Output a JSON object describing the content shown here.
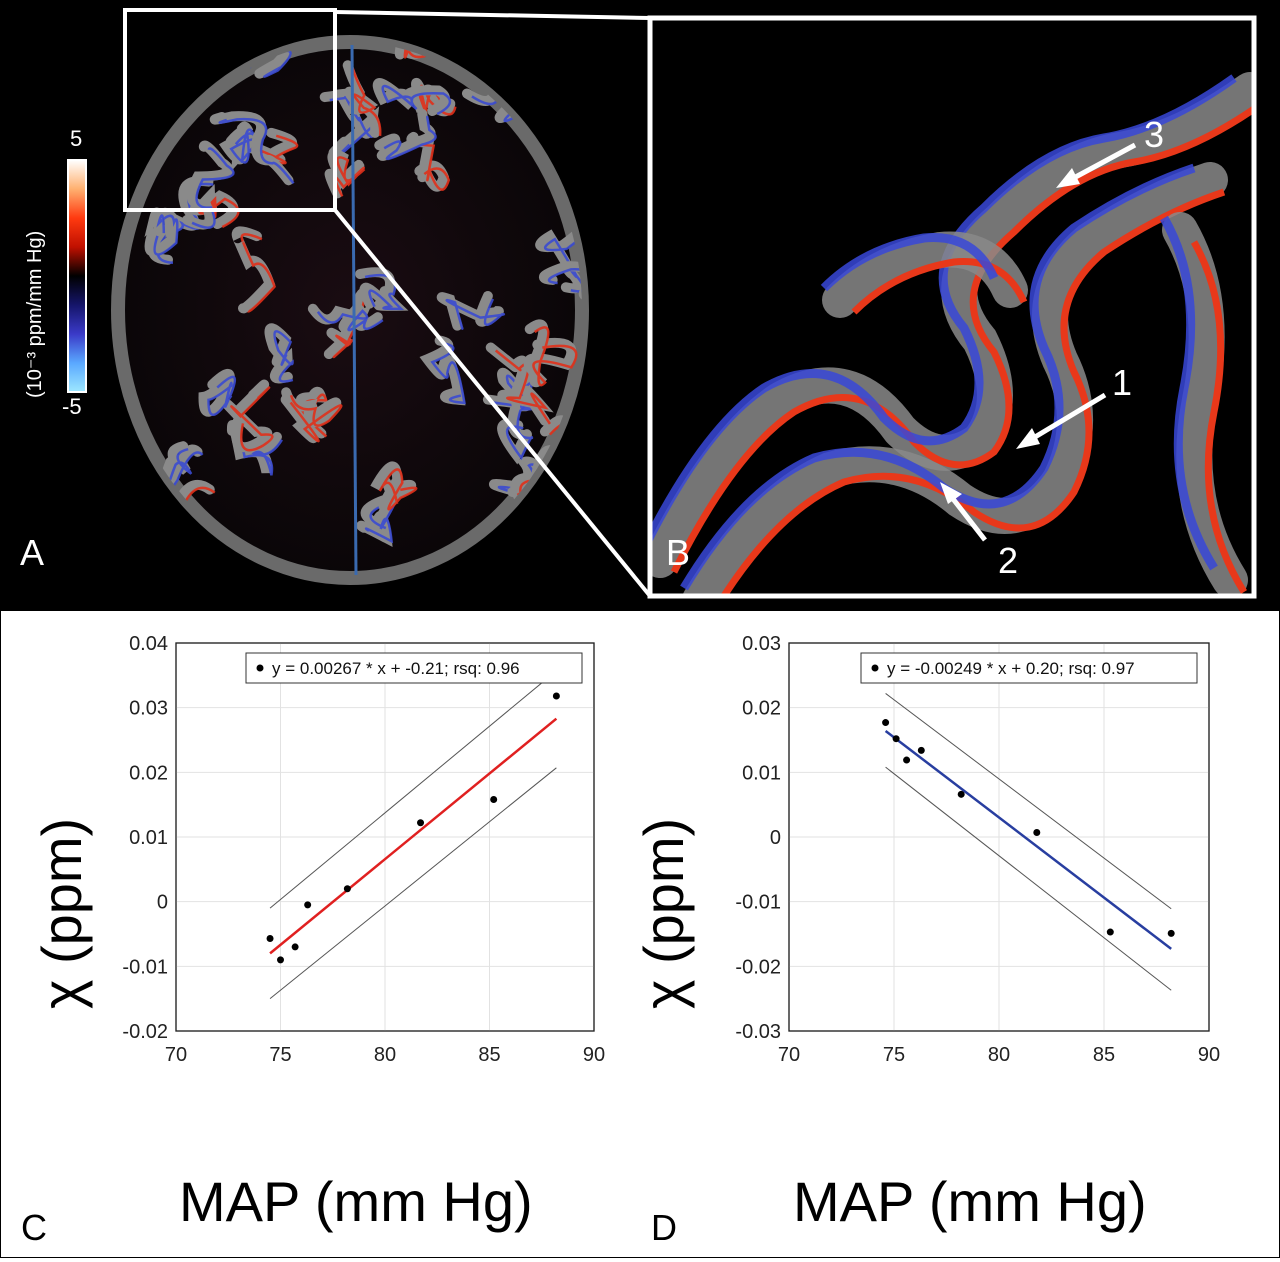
{
  "panels": {
    "a_label": "A",
    "b_label": "B",
    "c_label": "C",
    "d_label": "D"
  },
  "colorbar": {
    "max": "5",
    "min": "-5",
    "unit": "(10⁻³ ppm/mm Hg)",
    "colors": [
      "#ffffff",
      "#ffb070",
      "#ff3a10",
      "#c01000",
      "#000000",
      "#15156a",
      "#3a3ac8",
      "#5aa8ff",
      "#9ee8ff"
    ]
  },
  "arrows": [
    {
      "label": "1"
    },
    {
      "label": "2"
    },
    {
      "label": "3"
    }
  ],
  "colors": {
    "positive_fit": "#e02020",
    "negative_fit": "#283ea0",
    "gray_matter": "#8a8a8a",
    "zoom_box": "#ffffff"
  },
  "chart_data": [
    {
      "type": "scatter",
      "panel": "C",
      "xlabel": "MAP (mm Hg)",
      "ylabel": "χ (ppm)",
      "xlim": [
        70,
        90
      ],
      "ylim": [
        -0.02,
        0.04
      ],
      "xticks": [
        "70",
        "75",
        "80",
        "85",
        "90"
      ],
      "yticks": [
        "0.04",
        "0.03",
        "0.02",
        "0.01",
        "0",
        "-0.01",
        "-0.02"
      ],
      "legend": "y = 0.00267 * x + -0.21; rsq: 0.96",
      "legend_position": "top-right",
      "grid": true,
      "points": [
        {
          "x": 74.5,
          "y": -0.0057
        },
        {
          "x": 75.0,
          "y": -0.009
        },
        {
          "x": 75.7,
          "y": -0.007
        },
        {
          "x": 76.3,
          "y": -0.0005
        },
        {
          "x": 78.2,
          "y": 0.002
        },
        {
          "x": 81.7,
          "y": 0.0122
        },
        {
          "x": 85.2,
          "y": 0.0158
        },
        {
          "x": 88.2,
          "y": 0.0318
        }
      ],
      "fit_line": {
        "x": [
          74.5,
          88.2
        ],
        "y": [
          -0.008,
          0.0283
        ]
      },
      "upper_bound": {
        "x": [
          74.5,
          88.2
        ],
        "y": [
          -0.001,
          0.0357
        ]
      },
      "lower_bound": {
        "x": [
          74.5,
          88.2
        ],
        "y": [
          -0.015,
          0.0207
        ]
      }
    },
    {
      "type": "scatter",
      "panel": "D",
      "xlabel": "MAP (mm Hg)",
      "ylabel": "χ (ppm)",
      "xlim": [
        70,
        90
      ],
      "ylim": [
        -0.03,
        0.03
      ],
      "xticks": [
        "70",
        "75",
        "80",
        "85",
        "90"
      ],
      "yticks": [
        "0.03",
        "0.02",
        "0.01",
        "0",
        "-0.01",
        "-0.02",
        "-0.03"
      ],
      "legend": "y = -0.00249 * x + 0.20; rsq: 0.97",
      "legend_position": "top-right",
      "grid": true,
      "points": [
        {
          "x": 74.6,
          "y": 0.0177
        },
        {
          "x": 75.1,
          "y": 0.0152
        },
        {
          "x": 75.6,
          "y": 0.0119
        },
        {
          "x": 76.3,
          "y": 0.0134
        },
        {
          "x": 78.2,
          "y": 0.0066
        },
        {
          "x": 81.8,
          "y": 0.0007
        },
        {
          "x": 85.3,
          "y": -0.0147
        },
        {
          "x": 88.2,
          "y": -0.0149
        }
      ],
      "fit_line": {
        "x": [
          74.6,
          88.2
        ],
        "y": [
          0.0164,
          -0.0173
        ]
      },
      "upper_bound": {
        "x": [
          74.6,
          88.2
        ],
        "y": [
          0.0222,
          -0.0111
        ]
      },
      "lower_bound": {
        "x": [
          74.6,
          88.2
        ],
        "y": [
          0.0108,
          -0.0237
        ]
      }
    }
  ]
}
